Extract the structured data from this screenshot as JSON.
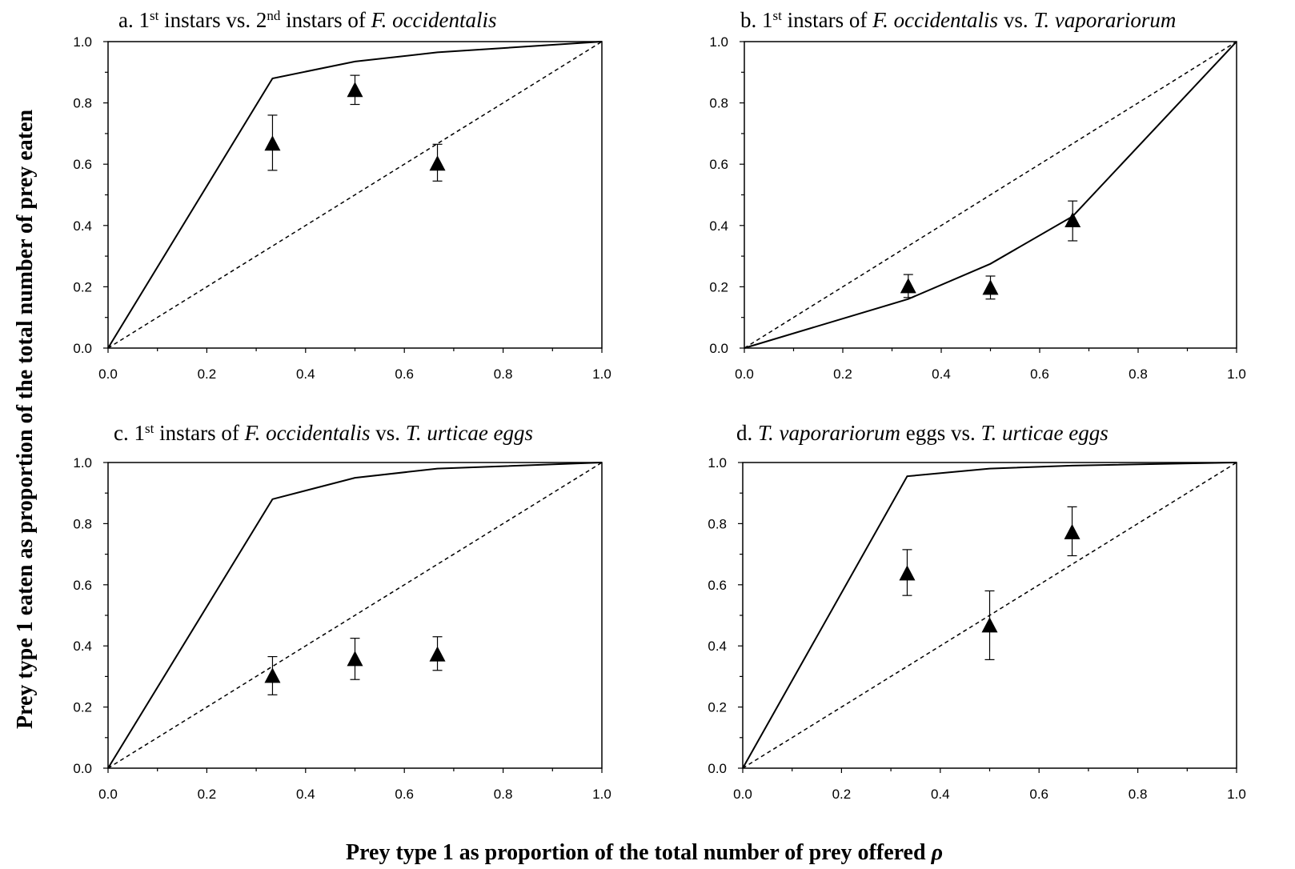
{
  "xlabel_prefix": "Prey type 1 as proportion of the total number of prey offered ",
  "xlabel_symbol": "ρ",
  "ylabel": "Prey  type 1 eaten as proportion of the total number of prey eaten",
  "chart_data": [
    {
      "type": "scatter",
      "title": [
        {
          "t": "a. 1",
          "s": ""
        },
        {
          "t": "st",
          "s": "sup"
        },
        {
          "t": " instars vs. 2",
          "s": ""
        },
        {
          "t": "nd",
          "s": "sup"
        },
        {
          "t": " instars of ",
          "s": ""
        },
        {
          "t": "F. occidentalis",
          "s": "it"
        }
      ],
      "xlim": [
        0,
        1
      ],
      "ylim": [
        0,
        1
      ],
      "xticks": [
        "0.0",
        "0.2",
        "0.4",
        "0.6",
        "0.8",
        "1.0"
      ],
      "yticks": [
        "0.0",
        "0.2",
        "0.4",
        "0.6",
        "0.8",
        "1.0"
      ],
      "grid": false,
      "model_line": {
        "x": [
          0,
          0.333,
          0.5,
          0.667,
          1.0
        ],
        "y": [
          0,
          0.88,
          0.935,
          0.965,
          1.0
        ]
      },
      "reference_line": {
        "x": [
          0,
          1
        ],
        "y": [
          0,
          1
        ]
      },
      "points": [
        {
          "x": 0.333,
          "y": 0.665,
          "lo": 0.58,
          "hi": 0.76
        },
        {
          "x": 0.5,
          "y": 0.84,
          "lo": 0.795,
          "hi": 0.89
        },
        {
          "x": 0.667,
          "y": 0.6,
          "lo": 0.545,
          "hi": 0.665
        }
      ]
    },
    {
      "type": "scatter",
      "title": [
        {
          "t": "b. 1",
          "s": ""
        },
        {
          "t": "st",
          "s": "sup"
        },
        {
          "t": " instars of ",
          "s": ""
        },
        {
          "t": "F. occidentalis",
          "s": "it"
        },
        {
          "t": " vs. ",
          "s": ""
        },
        {
          "t": "T. vaporariorum",
          "s": "it"
        }
      ],
      "xlim": [
        0,
        1
      ],
      "ylim": [
        0,
        1
      ],
      "xticks": [
        "0.0",
        "0.2",
        "0.4",
        "0.6",
        "0.8",
        "1.0"
      ],
      "yticks": [
        "0.0",
        "0.2",
        "0.4",
        "0.6",
        "0.8",
        "1.0"
      ],
      "grid": false,
      "model_line": {
        "x": [
          0,
          0.333,
          0.5,
          0.667,
          1.0
        ],
        "y": [
          0,
          0.16,
          0.275,
          0.43,
          1.0
        ]
      },
      "reference_line": {
        "x": [
          0,
          1
        ],
        "y": [
          0,
          1
        ]
      },
      "points": [
        {
          "x": 0.333,
          "y": 0.2,
          "lo": 0.165,
          "hi": 0.24
        },
        {
          "x": 0.5,
          "y": 0.195,
          "lo": 0.16,
          "hi": 0.235
        },
        {
          "x": 0.667,
          "y": 0.415,
          "lo": 0.35,
          "hi": 0.48
        }
      ]
    },
    {
      "type": "scatter",
      "title": [
        {
          "t": "c. 1",
          "s": ""
        },
        {
          "t": "st",
          "s": "sup"
        },
        {
          "t": " instars of ",
          "s": ""
        },
        {
          "t": "F. occidentalis",
          "s": "it"
        },
        {
          "t": " vs. ",
          "s": ""
        },
        {
          "t": "T. urticae eggs",
          "s": "it"
        }
      ],
      "xlim": [
        0,
        1
      ],
      "ylim": [
        0,
        1
      ],
      "xticks": [
        "0.0",
        "0.2",
        "0.4",
        "0.6",
        "0.8",
        "1.0"
      ],
      "yticks": [
        "0.0",
        "0.2",
        "0.4",
        "0.6",
        "0.8",
        "1.0"
      ],
      "grid": false,
      "model_line": {
        "x": [
          0,
          0.333,
          0.5,
          0.667,
          1.0
        ],
        "y": [
          0,
          0.88,
          0.95,
          0.98,
          1.0
        ]
      },
      "reference_line": {
        "x": [
          0,
          1
        ],
        "y": [
          0,
          1
        ]
      },
      "points": [
        {
          "x": 0.333,
          "y": 0.3,
          "lo": 0.24,
          "hi": 0.365
        },
        {
          "x": 0.5,
          "y": 0.355,
          "lo": 0.29,
          "hi": 0.425
        },
        {
          "x": 0.667,
          "y": 0.37,
          "lo": 0.32,
          "hi": 0.43
        }
      ]
    },
    {
      "type": "scatter",
      "title": [
        {
          "t": "d. ",
          "s": ""
        },
        {
          "t": "T. vaporariorum",
          "s": "it"
        },
        {
          "t": " eggs  vs. ",
          "s": ""
        },
        {
          "t": "T. urticae eggs",
          "s": "it"
        }
      ],
      "xlim": [
        0,
        1
      ],
      "ylim": [
        0,
        1
      ],
      "xticks": [
        "0.0",
        "0.2",
        "0.4",
        "0.6",
        "0.8",
        "1.0"
      ],
      "yticks": [
        "0.0",
        "0.2",
        "0.4",
        "0.6",
        "0.8",
        "1.0"
      ],
      "grid": false,
      "model_line": {
        "x": [
          0,
          0.333,
          0.5,
          0.667,
          1.0
        ],
        "y": [
          0,
          0.955,
          0.98,
          0.99,
          1.0
        ]
      },
      "reference_line": {
        "x": [
          0,
          1
        ],
        "y": [
          0,
          1
        ]
      },
      "points": [
        {
          "x": 0.333,
          "y": 0.635,
          "lo": 0.565,
          "hi": 0.715
        },
        {
          "x": 0.5,
          "y": 0.465,
          "lo": 0.355,
          "hi": 0.58
        },
        {
          "x": 0.667,
          "y": 0.77,
          "lo": 0.695,
          "hi": 0.855
        }
      ]
    }
  ]
}
